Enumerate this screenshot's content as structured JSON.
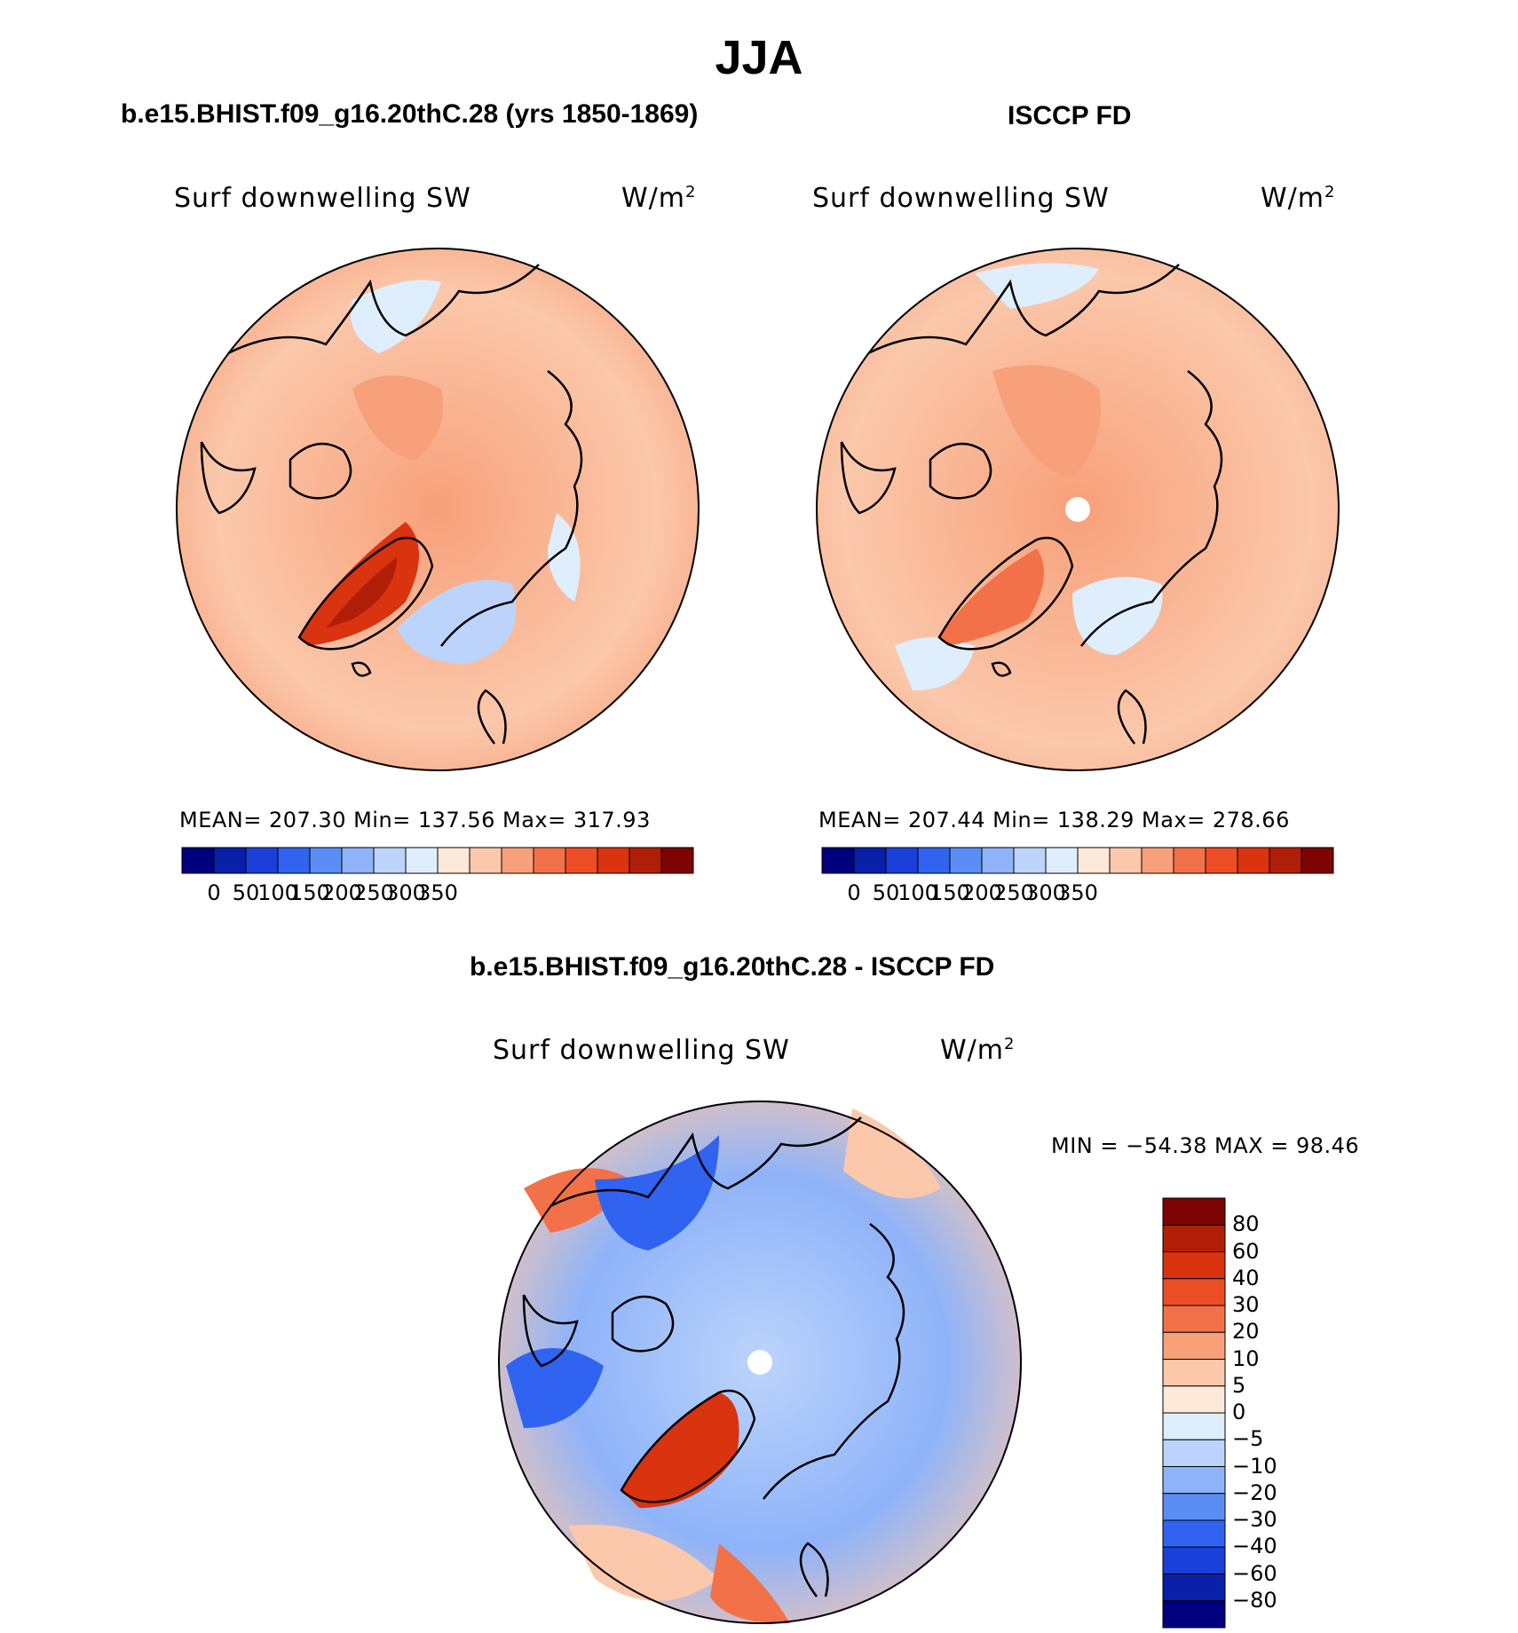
{
  "figure": {
    "title": "JJA",
    "panel_left_title": "b.e15.BHIST.f09_g16.20thC.28 (yrs 1850-1869)",
    "panel_right_title": "ISCCP FD",
    "panel_diff_title": "b.e15.BHIST.f09_g16.20thC.28 - ISCCP FD"
  },
  "panels": {
    "left": {
      "variable": "Surf  downwelling  SW",
      "units": "W/m",
      "units_sup": "2",
      "stats": "MEAN=  207.30    Min=  137.56    Max=  317.93"
    },
    "right": {
      "variable": "Surf  downwelling  SW",
      "units": "W/m",
      "units_sup": "2",
      "stats": "MEAN=  207.44    Min=  138.29    Max=  278.66"
    },
    "diff": {
      "variable": "Surf  downwelling  SW",
      "units": "W/m",
      "units_sup": "2",
      "stats": "MIN  =  −54.38  MAX  =    98.46"
    }
  },
  "colorbars": {
    "abs_ticks": [
      "0",
      "50",
      "100",
      "150",
      "200",
      "250",
      "300",
      "350"
    ],
    "abs_colors": [
      "#00007f",
      "#0a1fa8",
      "#1b3fd9",
      "#2f63f0",
      "#5b8ef5",
      "#8fb3f9",
      "#bcd4fb",
      "#dfeefc",
      "#fde9da",
      "#fbc8ab",
      "#f7a07a",
      "#f27148",
      "#ec4d24",
      "#d9330f",
      "#b01e08",
      "#7d0202"
    ],
    "diff_ticks": [
      "80",
      "60",
      "40",
      "30",
      "20",
      "10",
      "5",
      "0",
      "−5",
      "−10",
      "−20",
      "−30",
      "−40",
      "−60",
      "−80"
    ],
    "diff_colors": [
      "#7d0202",
      "#b01e08",
      "#d9330f",
      "#ec4d24",
      "#f27148",
      "#f7a07a",
      "#fbc8ab",
      "#fde9da",
      "#dfeefc",
      "#bcd4fb",
      "#8fb3f9",
      "#5b8ef5",
      "#2f63f0",
      "#1b3fd9",
      "#0a1fa8",
      "#00007f"
    ]
  }
}
